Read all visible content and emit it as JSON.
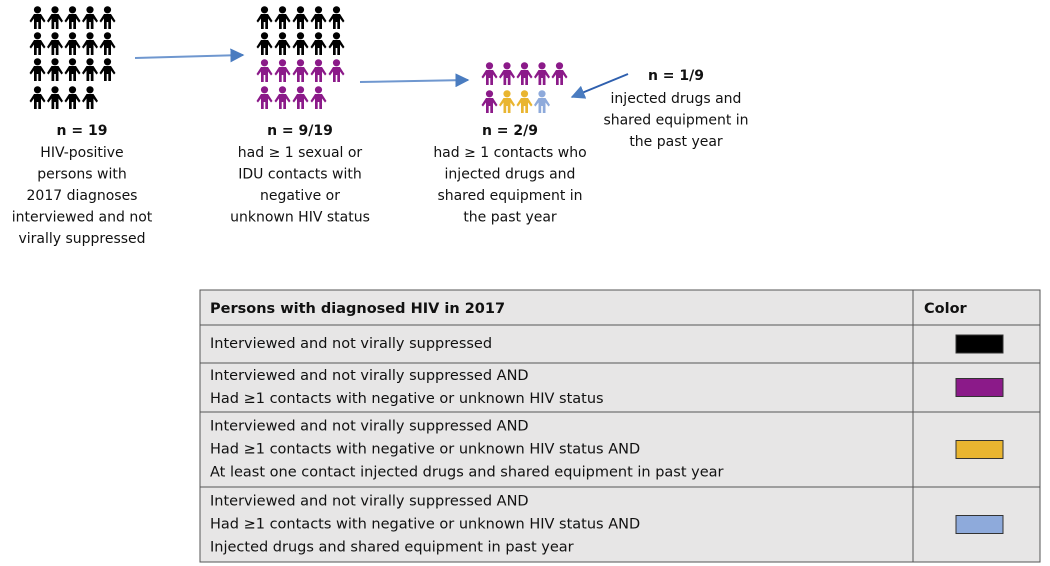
{
  "groups": [
    {
      "n": "n = 19",
      "lines": [
        "HIV-positive",
        "persons with",
        "2017 diagnoses",
        "interviewed and not",
        "virally suppressed"
      ]
    },
    {
      "n": "n = 9/19",
      "lines": [
        "had ≥ 1 sexual or",
        "IDU contacts with",
        "negative or",
        "unknown HIV status"
      ]
    },
    {
      "n": "n = 2/9",
      "lines": [
        "had ≥ 1 contacts who",
        "injected drugs and",
        "shared equipment in",
        "the past year"
      ]
    }
  ],
  "side_note": {
    "n": "n = 1/9",
    "lines": [
      "injected drugs and",
      "shared equipment in",
      "the past year"
    ]
  },
  "legend": {
    "header": [
      "Persons with diagnosed HIV in 2017",
      "Color"
    ],
    "rows": [
      {
        "lines": [
          "Interviewed and not virally suppressed"
        ],
        "color": "#000000"
      },
      {
        "lines": [
          "Interviewed and not virally suppressed AND",
          "Had ≥1 contacts with negative or unknown HIV status"
        ],
        "color": "#8b1a89"
      },
      {
        "lines": [
          "Interviewed and not virally suppressed AND",
          "Had ≥1 contacts with negative or unknown HIV status AND",
          "At least one contact injected drugs and shared equipment in past year"
        ],
        "color": "#e9b530"
      },
      {
        "lines": [
          "Interviewed and not virally suppressed AND",
          "Had ≥1 contacts with negative or unknown HIV status AND",
          "Injected drugs and shared equipment in past year"
        ],
        "color": "#8eaadb"
      }
    ]
  }
}
